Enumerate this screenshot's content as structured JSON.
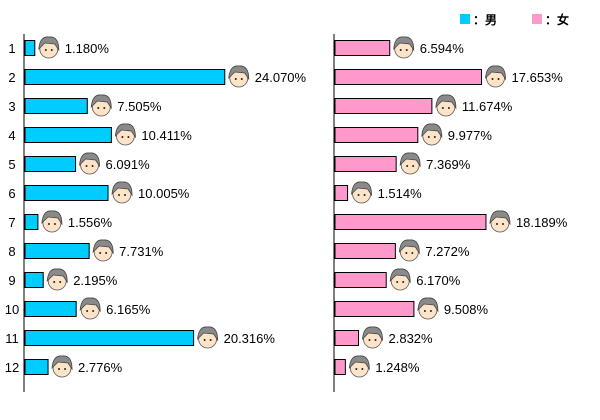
{
  "chart_data": {
    "type": "bar",
    "orientation": "horizontal",
    "categories": [
      "1",
      "2",
      "3",
      "4",
      "5",
      "6",
      "7",
      "8",
      "9",
      "10",
      "11",
      "12"
    ],
    "value_suffix": "%",
    "grid": false,
    "legend_position": "top-right",
    "series": [
      {
        "name": "：男",
        "color": "#00ccff",
        "values": [
          1.18,
          24.07,
          7.505,
          10.411,
          6.091,
          10.005,
          1.556,
          7.731,
          2.195,
          6.165,
          20.316,
          2.776
        ],
        "labels": [
          "1.180%",
          "24.070%",
          "7.505%",
          "10.411%",
          "6.091%",
          "10.005%",
          "1.556%",
          "7.731%",
          "2.195%",
          "6.165%",
          "20.316%",
          "2.776%"
        ]
      },
      {
        "name": "：女",
        "color": "#ff99cc",
        "values": [
          6.594,
          17.653,
          11.674,
          9.977,
          7.369,
          1.514,
          18.189,
          7.272,
          6.17,
          9.508,
          2.832,
          1.248
        ],
        "labels": [
          "6.594%",
          "17.653%",
          "11.674%",
          "9.977%",
          "7.369%",
          "1.514%",
          "18.189%",
          "7.272%",
          "6.170%",
          "9.508%",
          "2.832%",
          "1.248%"
        ]
      }
    ]
  }
}
